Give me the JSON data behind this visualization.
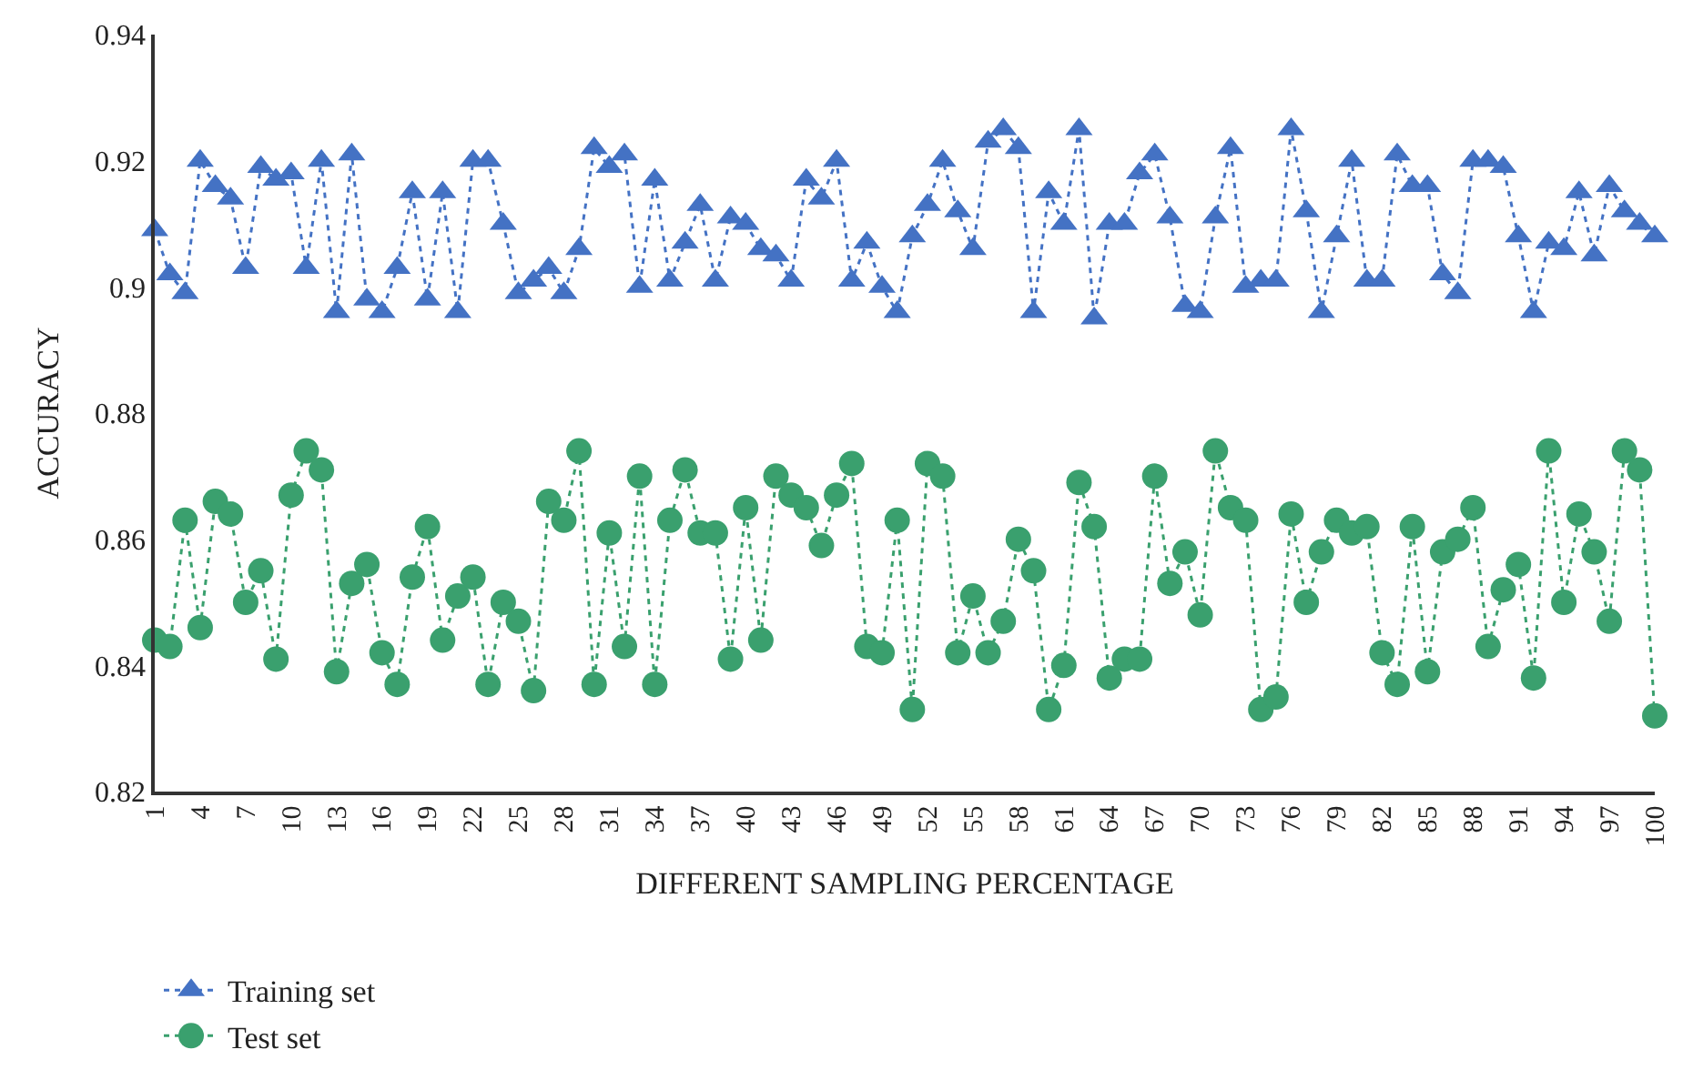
{
  "chart_data": {
    "type": "line",
    "xlabel": "DIFFERENT SAMPLING PERCENTAGE",
    "ylabel": "ACCURACY",
    "categories": [
      "1",
      null,
      null,
      "4",
      null,
      null,
      "7",
      null,
      null,
      "10",
      null,
      null,
      "13",
      null,
      null,
      "16",
      null,
      null,
      "19",
      null,
      null,
      "22",
      null,
      null,
      "25",
      null,
      null,
      "28",
      null,
      null,
      "31",
      null,
      null,
      "34",
      null,
      null,
      "37",
      null,
      null,
      "40",
      null,
      null,
      "43",
      null,
      null,
      "46",
      null,
      null,
      "49",
      null,
      null,
      "52",
      null,
      null,
      "55",
      null,
      null,
      "58",
      null,
      null,
      "61",
      null,
      null,
      "64",
      null,
      null,
      "67",
      null,
      null,
      "70",
      null,
      null,
      "73",
      null,
      null,
      "76",
      null,
      null,
      "79",
      null,
      null,
      "82",
      null,
      null,
      "85",
      null,
      null,
      "88",
      null,
      null,
      "91",
      null,
      null,
      "94",
      null,
      null,
      "97",
      null,
      null,
      "100"
    ],
    "ylim": [
      0.82,
      0.94
    ],
    "yticks": [
      0.82,
      0.84,
      0.86,
      0.88,
      0.9,
      0.92,
      0.94
    ],
    "legend": "bottom left",
    "line_style": "dotted",
    "series": [
      {
        "name": "Training set",
        "color": "#4472c4",
        "marker": "triangle",
        "values": [
          0.909,
          0.902,
          0.899,
          0.92,
          0.916,
          0.914,
          0.903,
          0.919,
          0.917,
          0.918,
          0.903,
          0.92,
          0.896,
          0.921,
          0.898,
          0.896,
          0.903,
          0.915,
          0.898,
          0.915,
          0.896,
          0.92,
          0.92,
          0.91,
          0.899,
          0.901,
          0.903,
          0.899,
          0.906,
          0.922,
          0.919,
          0.921,
          0.9,
          0.917,
          0.901,
          0.907,
          0.913,
          0.901,
          0.911,
          0.91,
          0.906,
          0.905,
          0.901,
          0.917,
          0.914,
          0.92,
          0.901,
          0.907,
          0.9,
          0.896,
          0.908,
          0.913,
          0.92,
          0.912,
          0.906,
          0.923,
          0.925,
          0.922,
          0.896,
          0.915,
          0.91,
          0.925,
          0.895,
          0.91,
          0.91,
          0.918,
          0.921,
          0.911,
          0.897,
          0.896,
          0.911,
          0.922,
          0.9,
          0.901,
          0.901,
          0.925,
          0.912,
          0.896,
          0.908,
          0.92,
          0.901,
          0.901,
          0.921,
          0.916,
          0.916,
          0.902,
          0.899,
          0.92,
          0.92,
          0.919,
          0.908,
          0.896,
          0.907,
          0.906,
          0.915,
          0.905,
          0.916,
          0.912,
          0.91,
          0.908
        ]
      },
      {
        "name": "Test set",
        "color": "#3aa06e",
        "marker": "circle",
        "values": [
          0.844,
          0.843,
          0.863,
          0.846,
          0.866,
          0.864,
          0.85,
          0.855,
          0.841,
          0.867,
          0.874,
          0.871,
          0.839,
          0.853,
          0.856,
          0.842,
          0.837,
          0.854,
          0.862,
          0.844,
          0.851,
          0.854,
          0.837,
          0.85,
          0.847,
          0.836,
          0.866,
          0.863,
          0.874,
          0.837,
          0.861,
          0.843,
          0.87,
          0.837,
          0.863,
          0.871,
          0.861,
          0.861,
          0.841,
          0.865,
          0.844,
          0.87,
          0.867,
          0.865,
          0.859,
          0.867,
          0.872,
          0.843,
          0.842,
          0.863,
          0.833,
          0.872,
          0.87,
          0.842,
          0.851,
          0.842,
          0.847,
          0.86,
          0.855,
          0.833,
          0.84,
          0.869,
          0.862,
          0.838,
          0.841,
          0.841,
          0.87,
          0.853,
          0.858,
          0.848,
          0.874,
          0.865,
          0.863,
          0.833,
          0.835,
          0.864,
          0.85,
          0.858,
          0.863,
          0.861,
          0.862,
          0.842,
          0.837,
          0.862,
          0.839,
          0.858,
          0.86,
          0.865,
          0.843,
          0.852,
          0.856,
          0.838,
          0.874,
          0.85,
          0.864,
          0.858,
          0.847,
          0.874,
          0.871,
          0.832
        ]
      }
    ]
  }
}
